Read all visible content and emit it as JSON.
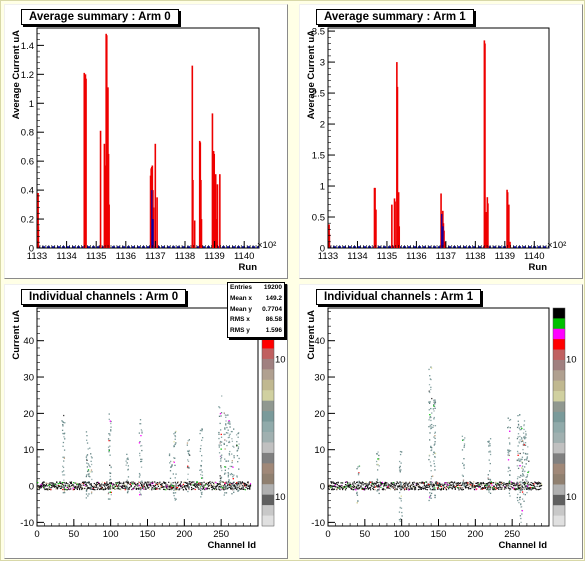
{
  "colors": {
    "background": "#ffffe6",
    "bar": "#ee0000",
    "blue_line": "#0000aa"
  },
  "pads": {
    "avg0": {
      "title": "Average summary : Arm 0"
    },
    "avg1": {
      "title": "Average summary : Arm 1"
    },
    "ind0": {
      "title": "Individual channels : Arm 0",
      "stats": {
        "entries_label": "Entries",
        "entries": "19200",
        "meanx_label": "Mean x",
        "meanx": "149.2",
        "meany_label": "Mean y",
        "meany": "0.7704",
        "rmsx_label": "RMS x",
        "rmsx": "86.58",
        "rmsy_label": "RMS y",
        "rmsy": "1.596"
      }
    },
    "ind1": {
      "title": "Individual channels : Arm 1"
    }
  },
  "chart_data": [
    {
      "id": "avg0",
      "type": "bar",
      "title": "Average summary : Arm 0",
      "xlabel": "Run",
      "ylabel": "Average Current uA",
      "x_multiplier": "×10²",
      "xlim": [
        113300,
        114050
      ],
      "ylim": [
        0,
        1.52
      ],
      "xticks": [
        "1133",
        "1134",
        "1135",
        "1136",
        "1137",
        "1138",
        "1139",
        "1140"
      ],
      "yticks": [
        "0",
        "0.2",
        "0.4",
        "0.6",
        "0.8",
        "1",
        "1.2",
        "1.4"
      ],
      "ytick_values": [
        0,
        0.2,
        0.4,
        0.6,
        0.8,
        1,
        1.2,
        1.4
      ],
      "x": [
        113301,
        113302,
        113457,
        113459,
        113461,
        113463,
        113512,
        113525,
        113527,
        113529,
        113531,
        113533,
        113535,
        113537,
        113539,
        113541,
        113681,
        113683,
        113685,
        113687,
        113689,
        113691,
        113697,
        113703,
        113822,
        113824,
        113830,
        113847,
        113849,
        113851,
        113853,
        113890,
        113892,
        113894,
        113896,
        113899,
        113901,
        113905,
        113907,
        113915
      ],
      "values": [
        0.38,
        0.15,
        1.21,
        1.17,
        1.2,
        1.17,
        0.81,
        0.72,
        0.56,
        0.57,
        1.48,
        1.47,
        0.96,
        1.11,
        0.65,
        0.3,
        0.5,
        0.55,
        0.56,
        0.57,
        0.4,
        0.28,
        0.72,
        0.35,
        1.26,
        0.47,
        0.19,
        0.74,
        0.73,
        0.47,
        0.2,
        0.93,
        0.4,
        0.67,
        0.65,
        0.38,
        0.51,
        0.2,
        0.44,
        0.51
      ],
      "blue_x": [
        113686,
        113690
      ],
      "blue_values": [
        0.4,
        0.2
      ],
      "grid": false
    },
    {
      "id": "avg1",
      "type": "bar",
      "title": "Average summary : Arm 1",
      "xlabel": "Run",
      "ylabel": "Average Current uA",
      "x_multiplier": "×10²",
      "xlim": [
        113300,
        114050
      ],
      "ylim": [
        0,
        3.55
      ],
      "xticks": [
        "1133",
        "1134",
        "1135",
        "1136",
        "1137",
        "1138",
        "1139",
        "1140"
      ],
      "yticks": [
        "0",
        "0.5",
        "1",
        "1.5",
        "2",
        "2.5",
        "3",
        "3.5"
      ],
      "ytick_values": [
        0,
        0.5,
        1,
        1.5,
        2,
        2.5,
        3,
        3.5
      ],
      "x": [
        113301,
        113302,
        113455,
        113457,
        113460,
        113514,
        113523,
        113525,
        113531,
        113533,
        113535,
        113537,
        113539,
        113681,
        113683,
        113687,
        113689,
        113691,
        113695,
        113828,
        113830,
        113832,
        113836,
        113838,
        113840,
        113905,
        113907,
        113909,
        113911,
        113915
      ],
      "values": [
        0.38,
        0.23,
        0.97,
        0.97,
        0.62,
        0.7,
        0.8,
        0.75,
        3.0,
        2.6,
        0.4,
        0.9,
        0.35,
        0.88,
        0.28,
        0.6,
        0.4,
        0.28,
        0.1,
        3.35,
        3.3,
        0.58,
        0.58,
        0.82,
        0.72,
        0.94,
        0.9,
        0.55,
        0.7,
        0.1
      ],
      "blue_x": [
        113684,
        113688
      ],
      "blue_values": [
        0.55,
        0.35
      ],
      "grid": false
    },
    {
      "id": "ind0",
      "type": "scatter",
      "title": "Individual channels : Arm 0",
      "xlabel": "Channel Id",
      "ylabel": "Current uA",
      "xlim": [
        0,
        300
      ],
      "ylim": [
        -11,
        49
      ],
      "xticks": [
        "0",
        "50",
        "100",
        "150",
        "200",
        "250"
      ],
      "xtick_values": [
        0,
        50,
        100,
        150,
        200,
        250
      ],
      "yticks": [
        "-10",
        "0",
        "10",
        "20",
        "30",
        "40"
      ],
      "ytick_values": [
        -10,
        0,
        10,
        20,
        30,
        40
      ],
      "z_axis_labels": [
        "10",
        "10"
      ],
      "entries": 19200,
      "bursts": [
        {
          "x": 35,
          "ymin": -2,
          "ymax": 20
        },
        {
          "x": 68,
          "ymin": -4,
          "ymax": 17
        },
        {
          "x": 72,
          "ymin": -2,
          "ymax": 11
        },
        {
          "x": 98,
          "ymin": -4,
          "ymax": 20
        },
        {
          "x": 122,
          "ymin": -3,
          "ymax": 10
        },
        {
          "x": 140,
          "ymin": -3,
          "ymax": 19
        },
        {
          "x": 181,
          "ymin": -2,
          "ymax": 9
        },
        {
          "x": 186,
          "ymin": -4,
          "ymax": 16
        },
        {
          "x": 205,
          "ymin": -2,
          "ymax": 13
        },
        {
          "x": 222,
          "ymin": -3,
          "ymax": 17
        },
        {
          "x": 248,
          "ymin": -2,
          "ymax": 25
        },
        {
          "x": 255,
          "ymin": -3,
          "ymax": 21
        },
        {
          "x": 260,
          "ymin": -2,
          "ymax": 21
        },
        {
          "x": 265,
          "ymin": -2,
          "ymax": 16
        },
        {
          "x": 272,
          "ymin": -2,
          "ymax": 15
        }
      ],
      "grid": false
    },
    {
      "id": "ind1",
      "type": "scatter",
      "title": "Individual channels : Arm 1",
      "xlabel": "Channel Id",
      "ylabel": "Current uA",
      "xlim": [
        0,
        300
      ],
      "ylim": [
        -11,
        49
      ],
      "xticks": [
        "0",
        "50",
        "100",
        "150",
        "200",
        "250"
      ],
      "xtick_values": [
        0,
        50,
        100,
        150,
        200,
        250
      ],
      "yticks": [
        "-10",
        "0",
        "10",
        "20",
        "30",
        "40"
      ],
      "ytick_values": [
        -10,
        0,
        10,
        20,
        30,
        40
      ],
      "z_axis_labels": [
        "10",
        "10"
      ],
      "bursts": [
        {
          "x": 40,
          "ymin": -5,
          "ymax": 6
        },
        {
          "x": 67,
          "ymin": -2,
          "ymax": 10
        },
        {
          "x": 98,
          "ymin": -10,
          "ymax": 10
        },
        {
          "x": 138,
          "ymin": -4,
          "ymax": 33
        },
        {
          "x": 143,
          "ymin": -3,
          "ymax": 24
        },
        {
          "x": 183,
          "ymin": -2,
          "ymax": 14
        },
        {
          "x": 218,
          "ymin": -2,
          "ymax": 14
        },
        {
          "x": 245,
          "ymin": -3,
          "ymax": 19
        },
        {
          "x": 258,
          "ymin": -6,
          "ymax": 20
        },
        {
          "x": 262,
          "ymin": -10,
          "ymax": 18
        },
        {
          "x": 266,
          "ymin": -5,
          "ymax": 19
        },
        {
          "x": 270,
          "ymin": -3,
          "ymax": 11
        }
      ],
      "grid": false
    }
  ]
}
